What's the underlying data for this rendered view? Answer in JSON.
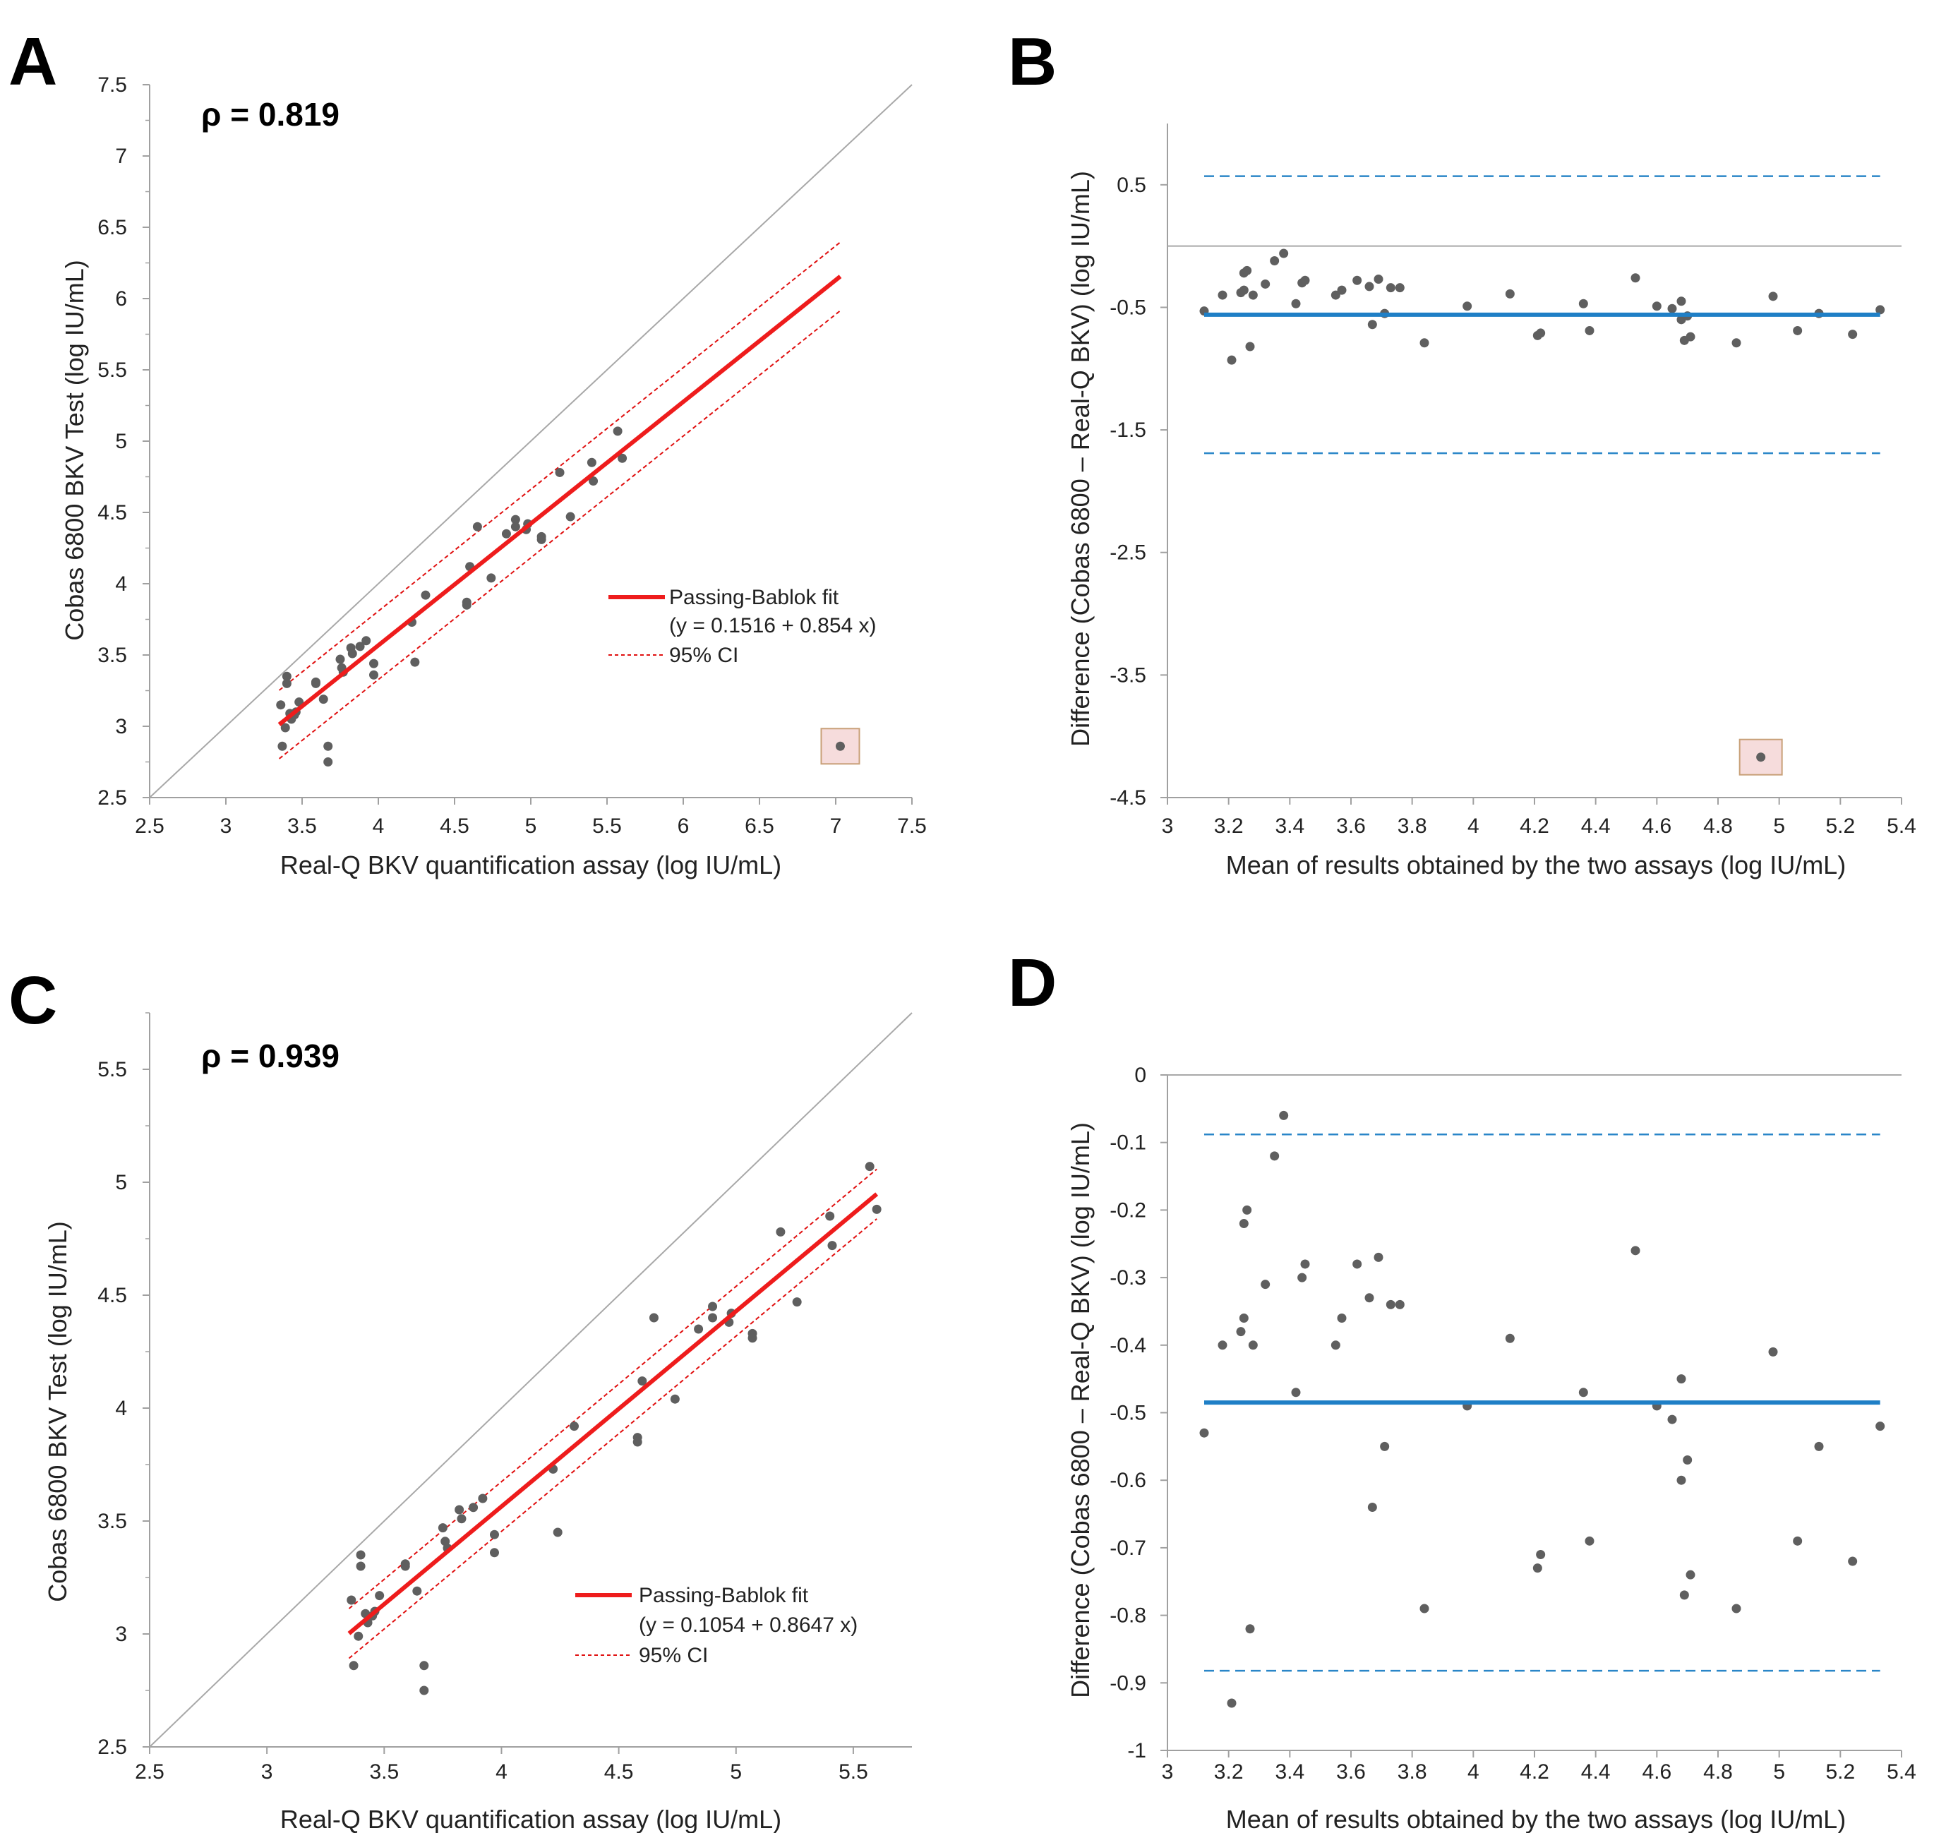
{
  "panels": [
    {
      "letter": "A",
      "type": "scatter",
      "rho_text": "ρ = 0.819",
      "xlabel": "Real-Q BKV quantification assay (log IU/mL)",
      "ylabel": "Cobas 6800 BKV Test (log IU/mL)",
      "xlim": [
        2.5,
        7.5
      ],
      "ylim": [
        2.5,
        7.5
      ],
      "xticks": [
        "2.5",
        "3",
        "3.5",
        "4",
        "4.5",
        "5",
        "5.5",
        "6",
        "6.5",
        "7",
        "7.5"
      ],
      "yticks": [
        "2.5",
        "3",
        "3.5",
        "4",
        "4.5",
        "5",
        "5.5",
        "6",
        "6.5",
        "7",
        "7.5"
      ],
      "identity_line": true,
      "fit": {
        "intercept": 0.1516,
        "slope": 0.854,
        "x_range": [
          3.35,
          7.03
        ],
        "ci_half_width": 0.2
      },
      "legend": {
        "fit_label": "Passing-Bablok fit",
        "equation": "(y = 0.1516 + 0.854 x)",
        "ci_label": "95% CI",
        "position": "lower-right"
      },
      "outlier": {
        "x": 7.03,
        "y": 2.86
      },
      "points": [
        [
          3.36,
          3.15
        ],
        [
          3.37,
          2.86
        ],
        [
          3.39,
          2.99
        ],
        [
          3.4,
          3.35
        ],
        [
          3.4,
          3.3
        ],
        [
          3.42,
          3.09
        ],
        [
          3.43,
          3.05
        ],
        [
          3.45,
          3.08
        ],
        [
          3.46,
          3.1
        ],
        [
          3.48,
          3.17
        ],
        [
          3.59,
          3.31
        ],
        [
          3.59,
          3.3
        ],
        [
          3.64,
          3.19
        ],
        [
          3.67,
          2.86
        ],
        [
          3.67,
          2.75
        ],
        [
          3.75,
          3.47
        ],
        [
          3.76,
          3.41
        ],
        [
          3.77,
          3.38
        ],
        [
          3.82,
          3.55
        ],
        [
          3.83,
          3.51
        ],
        [
          3.88,
          3.56
        ],
        [
          3.92,
          3.6
        ],
        [
          3.97,
          3.44
        ],
        [
          3.97,
          3.36
        ],
        [
          4.22,
          3.73
        ],
        [
          4.24,
          3.45
        ],
        [
          4.31,
          3.92
        ],
        [
          4.58,
          3.87
        ],
        [
          4.58,
          3.85
        ],
        [
          4.6,
          4.12
        ],
        [
          4.65,
          4.4
        ],
        [
          4.74,
          4.04
        ],
        [
          4.84,
          4.35
        ],
        [
          4.9,
          4.45
        ],
        [
          4.9,
          4.4
        ],
        [
          4.97,
          4.38
        ],
        [
          4.98,
          4.42
        ],
        [
          5.07,
          4.33
        ],
        [
          5.07,
          4.31
        ],
        [
          5.19,
          4.78
        ],
        [
          5.26,
          4.47
        ],
        [
          5.4,
          4.85
        ],
        [
          5.41,
          4.72
        ],
        [
          5.57,
          5.07
        ],
        [
          5.6,
          4.88
        ]
      ]
    },
    {
      "letter": "B",
      "type": "scatter",
      "xlabel": "Mean of results obtained by the two assays (log IU/mL)",
      "ylabel": "Difference (Cobas 6800 – Real-Q BKV) (log IU/mL)",
      "xlim": [
        3,
        5.4
      ],
      "ylim": [
        -4.5,
        1
      ],
      "xticks": [
        "3",
        "3.2",
        "3.4",
        "3.6",
        "3.8",
        "4",
        "4.2",
        "4.4",
        "4.6",
        "4.8",
        "5",
        "5.2",
        "5.4"
      ],
      "yticks": [
        "0.5",
        "-0.5",
        "-1.5",
        "-2.5",
        "-3.5",
        "-4.5"
      ],
      "ytick_values": [
        0.5,
        -0.5,
        -1.5,
        -2.5,
        -3.5,
        -4.5
      ],
      "zero_line": 0,
      "mean_line": -0.56,
      "loa": [
        0.57,
        -1.69
      ],
      "outlier": {
        "x": 4.94,
        "y": -4.17
      },
      "points": "shared:bland_altman"
    },
    {
      "letter": "C",
      "type": "scatter",
      "rho_text": "ρ = 0.939",
      "xlabel": "Real-Q BKV quantification assay (log IU/mL)",
      "ylabel": "Cobas 6800 BKV Test (log IU/mL)",
      "xlim": [
        2.5,
        5.75
      ],
      "ylim": [
        2.5,
        5.75
      ],
      "xticks": [
        "2.5",
        "3",
        "3.5",
        "4",
        "4.5",
        "5",
        "5.5"
      ],
      "yticks": [
        "2.5",
        "3",
        "3.5",
        "4",
        "4.5",
        "5",
        "5.5"
      ],
      "identity_line": true,
      "fit": {
        "intercept": 0.1054,
        "slope": 0.8647,
        "x_range": [
          3.35,
          5.6
        ],
        "ci_half_width": 0.07
      },
      "legend": {
        "fit_label": "Passing-Bablok fit",
        "equation": "(y = 0.1054 + 0.8647 x)",
        "ci_label": "95% CI",
        "position": "lower-right"
      },
      "points": "same_as:A"
    },
    {
      "letter": "D",
      "type": "scatter",
      "xlabel": "Mean of results obtained by the two assays (log IU/mL)",
      "ylabel": "Difference (Cobas 6800 – Real-Q BKV) (log IU/mL)",
      "xlim": [
        3,
        5.4
      ],
      "ylim": [
        -1,
        0
      ],
      "xticks": [
        "3",
        "3.2",
        "3.4",
        "3.6",
        "3.8",
        "4",
        "4.2",
        "4.4",
        "4.6",
        "4.8",
        "5",
        "5.2",
        "5.4"
      ],
      "yticks": [
        "0",
        "-0.1",
        "-0.2",
        "-0.3",
        "-0.4",
        "-0.5",
        "-0.6",
        "-0.7",
        "-0.8",
        "-0.9",
        "-1"
      ],
      "ytick_values": [
        0,
        -0.1,
        -0.2,
        -0.3,
        -0.4,
        -0.5,
        -0.6,
        -0.7,
        -0.8,
        -0.9,
        -1
      ],
      "zero_line": 0,
      "mean_line": -0.485,
      "loa": [
        -0.088,
        -0.882
      ],
      "points": "shared:bland_altman"
    }
  ],
  "bland_altman": [
    [
      3.12,
      -0.53
    ],
    [
      3.18,
      -0.4
    ],
    [
      3.21,
      -0.93
    ],
    [
      3.24,
      -0.38
    ],
    [
      3.25,
      -0.22
    ],
    [
      3.25,
      -0.36
    ],
    [
      3.26,
      -0.2
    ],
    [
      3.27,
      -0.82
    ],
    [
      3.28,
      -0.4
    ],
    [
      3.32,
      -0.31
    ],
    [
      3.35,
      -0.12
    ],
    [
      3.38,
      -0.06
    ],
    [
      3.42,
      -0.47
    ],
    [
      3.44,
      -0.3
    ],
    [
      3.45,
      -0.28
    ],
    [
      3.55,
      -0.4
    ],
    [
      3.57,
      -0.36
    ],
    [
      3.62,
      -0.28
    ],
    [
      3.66,
      -0.33
    ],
    [
      3.67,
      -0.64
    ],
    [
      3.69,
      -0.27
    ],
    [
      3.71,
      -0.55
    ],
    [
      3.73,
      -0.34
    ],
    [
      3.76,
      -0.34
    ],
    [
      3.84,
      -0.79
    ],
    [
      3.98,
      -0.49
    ],
    [
      4.12,
      -0.39
    ],
    [
      4.21,
      -0.73
    ],
    [
      4.22,
      -0.71
    ],
    [
      4.36,
      -0.47
    ],
    [
      4.38,
      -0.69
    ],
    [
      4.53,
      -0.26
    ],
    [
      4.6,
      -0.49
    ],
    [
      4.65,
      -0.51
    ],
    [
      4.68,
      -0.45
    ],
    [
      4.68,
      -0.6
    ],
    [
      4.69,
      -0.77
    ],
    [
      4.7,
      -0.57
    ],
    [
      4.71,
      -0.74
    ],
    [
      4.86,
      -0.79
    ],
    [
      4.98,
      -0.41
    ],
    [
      5.06,
      -0.69
    ],
    [
      5.13,
      -0.55
    ],
    [
      5.24,
      -0.72
    ],
    [
      5.33,
      -0.52
    ]
  ],
  "colors": {
    "point": "#5f5f5f",
    "fit": "#ee1c1c",
    "ci": "#e01010",
    "identity": "#a8a8a8",
    "axis": "#a0a0a0",
    "mean": "#1f7fc6",
    "loa": "#2a86c8",
    "outlier_fill": "#f6dcdc",
    "outlier_stroke": "#c8a078"
  }
}
